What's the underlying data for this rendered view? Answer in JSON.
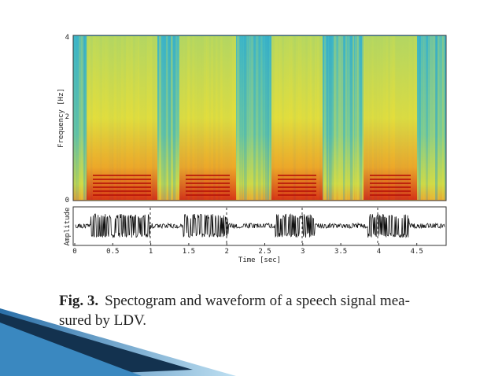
{
  "figure": {
    "spectrogram": {
      "y_label": "Frequency [Hz]",
      "yticks": [
        "4",
        "2",
        "0"
      ]
    },
    "waveform": {
      "y_label": "Amplitude",
      "x_label": "Time [sec]",
      "xticks": [
        "0",
        "0.5",
        "1",
        "1.5",
        "2",
        "2.5",
        "3",
        "3.5",
        "4",
        "4.5"
      ]
    }
  },
  "caption": {
    "label": "Fig. 3.",
    "line1": "Spectogram and waveform of a speech signal mea-",
    "line2": "sured by LDV."
  }
}
